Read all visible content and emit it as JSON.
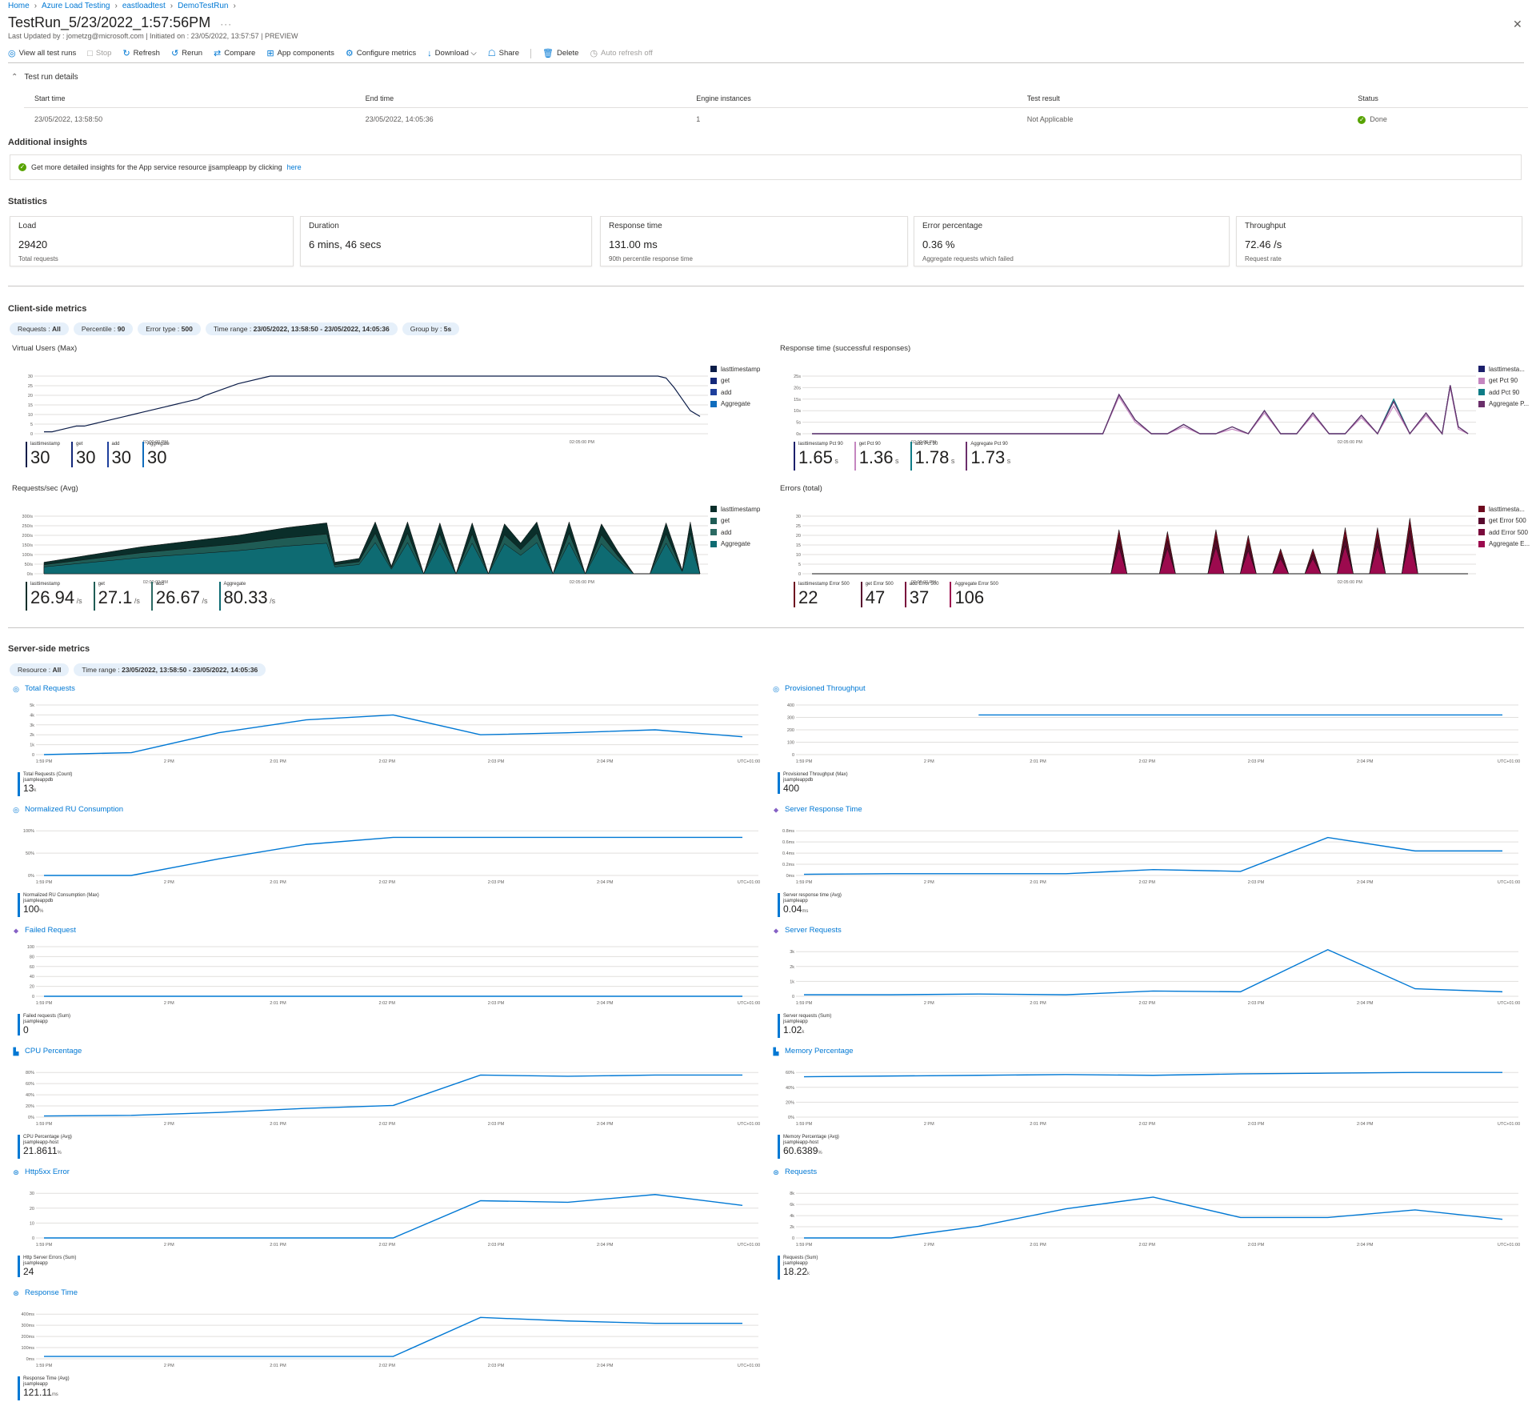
{
  "breadcrumb": [
    "Home",
    "Azure Load Testing",
    "eastloadtest",
    "DemoTestRun"
  ],
  "title": "TestRun_5/23/2022_1:57:56PM",
  "title_more": "···",
  "subtitle": "Last Updated by : jometzg@microsoft.com | Initiated on : 23/05/2022, 13:57:57 | PREVIEW",
  "toolbar": [
    {
      "icon": "eye-icon",
      "glyph": "◎",
      "label": "View all test runs",
      "enabled": true
    },
    {
      "icon": "stop-icon",
      "glyph": "□",
      "label": "Stop",
      "enabled": false
    },
    {
      "icon": "refresh-icon",
      "glyph": "↻",
      "label": "Refresh",
      "enabled": true
    },
    {
      "icon": "rerun-icon",
      "glyph": "↺",
      "label": "Rerun",
      "enabled": true
    },
    {
      "icon": "compare-icon",
      "glyph": "⇄",
      "label": "Compare",
      "enabled": true
    },
    {
      "icon": "app-components-icon",
      "glyph": "⊞",
      "label": "App components",
      "enabled": true
    },
    {
      "icon": "gear-icon",
      "glyph": "⚙",
      "label": "Configure metrics",
      "enabled": true
    },
    {
      "icon": "download-icon",
      "glyph": "↓",
      "label": "Download ⌵",
      "enabled": true
    },
    {
      "icon": "share-icon",
      "glyph": "☖",
      "label": "Share",
      "enabled": true
    },
    {
      "icon": "delete-icon",
      "glyph": "🗑",
      "label": "Delete",
      "enabled": true
    },
    {
      "icon": "clock-icon",
      "glyph": "◷",
      "label": "Auto refresh off",
      "enabled": false
    }
  ],
  "details": {
    "toggle_label": "Test run details",
    "headers": [
      "Start time",
      "End time",
      "Engine instances",
      "Test result",
      "Status"
    ],
    "values": [
      "23/05/2022, 13:58:50",
      "23/05/2022, 14:05:36",
      "1",
      "Not Applicable",
      "Done"
    ]
  },
  "insights": {
    "heading": "Additional insights",
    "text": "Get more detailed insights for the App service resource jjsampleapp by clicking",
    "link": "here"
  },
  "statistics": {
    "heading": "Statistics",
    "cards": [
      {
        "label": "Load",
        "value": "29420",
        "sub": "Total requests"
      },
      {
        "label": "Duration",
        "value": "6 mins, 46 secs",
        "sub": ""
      },
      {
        "label": "Response time",
        "value": "131.00 ms",
        "sub": "90th percentile response time"
      },
      {
        "label": "Error percentage",
        "value": "0.36 %",
        "sub": "Aggregate requests which failed"
      },
      {
        "label": "Throughput",
        "value": "72.46 /s",
        "sub": "Request rate"
      }
    ]
  },
  "client": {
    "heading": "Client-side metrics",
    "filters": [
      {
        "k": "Requests :",
        "v": "All"
      },
      {
        "k": "Percentile :",
        "v": "90"
      },
      {
        "k": "Error type :",
        "v": "500"
      },
      {
        "k": "Time range :",
        "v": "23/05/2022, 13:58:50 - 23/05/2022, 14:05:36"
      },
      {
        "k": "Group by :",
        "v": "5s"
      }
    ]
  },
  "server": {
    "heading": "Server-side metrics",
    "filters": [
      {
        "k": "Resource :",
        "v": "All"
      },
      {
        "k": "Time range :",
        "v": "23/05/2022, 13:58:50 - 23/05/2022, 14:05:36"
      }
    ],
    "x_ticks": [
      "1:59 PM",
      "2 PM",
      "2:01 PM",
      "2:02 PM",
      "2:03 PM",
      "2:04 PM",
      "UTC+01:00"
    ]
  },
  "colors": {
    "accent": "#0078d4",
    "vu": [
      "#0b1c48",
      "#14287a",
      "#1e3f9c",
      "#0f6cbd"
    ],
    "rt": [
      "#1b1f6b",
      "#c586c0",
      "#0e7c86",
      "#6b2f6b"
    ],
    "rps": [
      "#0a2e2a",
      "#1f5c55",
      "#2b6a63",
      "#0e6b72"
    ],
    "err": [
      "#6e0a1e",
      "#580a2e",
      "#7a0a3c",
      "#9c0a4e"
    ]
  },
  "chart_data": [
    {
      "type": "line",
      "title": "Virtual Users (Max)",
      "x_ticks": [
        "02:00:00 PM",
        "02:05:00 PM"
      ],
      "y_ticks": [
        "0",
        "5",
        "10",
        "15",
        "20",
        "25",
        "30"
      ],
      "ylim": [
        0,
        30
      ],
      "legend": [
        "lasttimestamp",
        "get",
        "add",
        "Aggregate"
      ],
      "x": [
        0,
        5,
        10,
        15,
        20,
        25,
        30,
        35,
        40,
        45,
        50,
        55,
        60,
        65,
        70,
        75,
        80,
        85,
        90,
        95,
        100,
        110,
        120,
        140,
        160,
        180,
        200,
        220,
        240,
        260,
        280,
        300,
        320,
        340,
        360,
        380,
        385,
        390,
        395,
        400,
        406
      ],
      "series": [
        {
          "name": "Aggregate",
          "values": [
            1,
            1,
            2,
            3,
            4,
            4,
            5,
            6,
            7,
            8,
            9,
            10,
            11,
            12,
            13,
            14,
            15,
            16,
            17,
            18,
            20,
            23,
            26,
            30,
            30,
            30,
            30,
            30,
            30,
            30,
            30,
            30,
            30,
            30,
            30,
            30,
            29,
            24,
            18,
            12,
            9
          ]
        }
      ],
      "summary": [
        {
          "name": "lasttimestamp",
          "value": "30",
          "unit": ""
        },
        {
          "name": "get",
          "value": "30",
          "unit": ""
        },
        {
          "name": "add",
          "value": "30",
          "unit": ""
        },
        {
          "name": "Aggregate",
          "value": "30",
          "unit": ""
        }
      ]
    },
    {
      "type": "line",
      "title": "Response time (successful responses)",
      "x_ticks": [
        "02:00:00 PM",
        "02:05:00 PM"
      ],
      "y_ticks": [
        "0s",
        "5s",
        "10s",
        "15s",
        "20s",
        "25s"
      ],
      "ylim": [
        0,
        25
      ],
      "legend": [
        "lasttimesta...",
        "get Pct 90",
        "add Pct 90",
        "Aggregate P..."
      ],
      "x": [
        0,
        180,
        190,
        200,
        210,
        220,
        230,
        240,
        250,
        260,
        270,
        280,
        290,
        300,
        310,
        320,
        330,
        340,
        350,
        360,
        370,
        380,
        390,
        395,
        400,
        406
      ],
      "series": [
        {
          "name": "lasttimestamp Pct 90",
          "values": [
            0,
            0,
            17,
            6,
            0,
            0,
            4,
            0,
            0,
            3,
            0,
            10,
            0,
            0,
            9,
            0,
            0,
            8,
            0,
            14,
            0,
            9,
            0,
            21,
            3,
            0
          ]
        },
        {
          "name": "get Pct 90",
          "values": [
            0,
            0,
            16,
            5,
            0,
            0,
            3,
            0,
            0,
            2,
            0,
            9,
            0,
            0,
            8,
            0,
            0,
            7,
            0,
            12,
            0,
            8,
            0,
            20,
            2,
            0
          ]
        },
        {
          "name": "add Pct 90",
          "values": [
            0,
            0,
            17,
            6,
            0,
            0,
            4,
            0,
            0,
            3,
            0,
            10,
            0,
            0,
            9,
            0,
            0,
            8,
            0,
            15,
            0,
            9,
            0,
            21,
            3,
            0
          ]
        },
        {
          "name": "Aggregate Pct 90",
          "values": [
            0,
            0,
            17,
            6,
            0,
            0,
            4,
            0,
            0,
            3,
            0,
            10,
            0,
            0,
            9,
            0,
            0,
            8,
            0,
            14,
            0,
            9,
            0,
            21,
            3,
            0
          ]
        }
      ],
      "summary": [
        {
          "name": "lasttimestamp Pct 90",
          "value": "1.65",
          "unit": "s"
        },
        {
          "name": "get Pct 90",
          "value": "1.36",
          "unit": "s"
        },
        {
          "name": "add Pct 90",
          "value": "1.78",
          "unit": "s"
        },
        {
          "name": "Aggregate Pct 90",
          "value": "1.73",
          "unit": "s"
        }
      ]
    },
    {
      "type": "area",
      "title": "Requests/sec (Avg)",
      "x_ticks": [
        "02:00:00 PM",
        "02:05:00 PM"
      ],
      "y_ticks": [
        "0/s",
        "50/s",
        "100/s",
        "150/s",
        "200/s",
        "250/s",
        "300/s"
      ],
      "ylim": [
        0,
        300
      ],
      "legend": [
        "lasttimestamp",
        "get",
        "add",
        "Aggregate"
      ],
      "x": [
        0,
        30,
        60,
        90,
        120,
        150,
        175,
        180,
        195,
        205,
        215,
        225,
        235,
        245,
        255,
        265,
        275,
        285,
        295,
        305,
        315,
        325,
        335,
        345,
        355,
        365,
        375,
        385,
        395,
        400,
        406
      ],
      "series": [
        {
          "name": "Aggregate",
          "values": [
            60,
            100,
            140,
            170,
            200,
            240,
            265,
            60,
            80,
            270,
            40,
            270,
            0,
            265,
            0,
            265,
            0,
            260,
            160,
            270,
            0,
            270,
            0,
            260,
            120,
            0,
            0,
            265,
            20,
            270,
            0
          ]
        }
      ],
      "summary": [
        {
          "name": "lasttimestamp",
          "value": "26.94",
          "unit": "/s"
        },
        {
          "name": "get",
          "value": "27.1",
          "unit": "/s"
        },
        {
          "name": "add",
          "value": "26.67",
          "unit": "/s"
        },
        {
          "name": "Aggregate",
          "value": "80.33",
          "unit": "/s"
        }
      ]
    },
    {
      "type": "area",
      "title": "Errors (total)",
      "x_ticks": [
        "02:00:00 PM",
        "02:05:00 PM"
      ],
      "y_ticks": [
        "0",
        "5",
        "10",
        "15",
        "20",
        "25",
        "30"
      ],
      "ylim": [
        0,
        30
      ],
      "legend": [
        "lasttimesta...",
        "get Error 500",
        "add Error 500",
        "Aggregate E..."
      ],
      "x": [
        0,
        185,
        190,
        195,
        215,
        220,
        225,
        245,
        250,
        255,
        265,
        270,
        275,
        285,
        290,
        295,
        305,
        310,
        315,
        325,
        330,
        335,
        345,
        350,
        355,
        365,
        370,
        375,
        385,
        390,
        395,
        406
      ],
      "series": [
        {
          "name": "Aggregate",
          "values": [
            0,
            0,
            23,
            0,
            0,
            22,
            0,
            0,
            23,
            0,
            0,
            20,
            0,
            0,
            13,
            0,
            0,
            13,
            0,
            0,
            24,
            0,
            0,
            24,
            0,
            0,
            29,
            0,
            0,
            0,
            0,
            0
          ]
        }
      ],
      "summary": [
        {
          "name": "lasttimestamp Error 500",
          "value": "22",
          "unit": ""
        },
        {
          "name": "get Error 500",
          "value": "47",
          "unit": ""
        },
        {
          "name": "add Error 500",
          "value": "37",
          "unit": ""
        },
        {
          "name": "Aggregate Error 500",
          "value": "106",
          "unit": ""
        }
      ]
    },
    {
      "type": "line",
      "title": "Total Requests",
      "icon": "cosmos-icon",
      "y_ticks": [
        "0",
        "1k",
        "2k",
        "3k",
        "4k",
        "5k"
      ],
      "ylim": [
        0,
        5000
      ],
      "x": [
        0,
        1,
        2,
        3,
        4,
        5,
        6,
        7,
        8
      ],
      "values": [
        0,
        200,
        2200,
        3500,
        4000,
        2000,
        2200,
        2500,
        1800
      ],
      "summary_name": "Total Requests (Count)",
      "summary_resource": "jsampleappdb",
      "summary_value": "13",
      "summary_unit": "k"
    },
    {
      "type": "line",
      "title": "Provisioned Throughput",
      "icon": "cosmos-icon",
      "y_ticks": [
        "0",
        "100",
        "200",
        "300",
        "400"
      ],
      "ylim": [
        0,
        500
      ],
      "x": [
        2,
        8
      ],
      "values": [
        400,
        400
      ],
      "summary_name": "Provisioned Throughput (Max)",
      "summary_resource": "jsampleappdb",
      "summary_value": "400",
      "summary_unit": ""
    },
    {
      "type": "line",
      "title": "Normalized RU Consumption",
      "icon": "cosmos-icon",
      "y_ticks": [
        "0%",
        "50%",
        "100%"
      ],
      "ylim": [
        0,
        120
      ],
      "x": [
        0,
        1,
        2,
        3,
        4,
        5,
        6,
        7,
        8
      ],
      "values": [
        0,
        0,
        40,
        75,
        92,
        92,
        92,
        92,
        92
      ],
      "summary_name": "Normalized RU Consumption (Max)",
      "summary_resource": "jsampleappdb",
      "summary_value": "100",
      "summary_unit": "%"
    },
    {
      "type": "line",
      "title": "Server Response Time",
      "icon": "location-icon",
      "y_ticks": [
        "0ms",
        "0.2ms",
        "0.4ms",
        "0.6ms",
        "0.8ms"
      ],
      "ylim": [
        0,
        0.85
      ],
      "x": [
        0,
        1,
        2,
        3,
        4,
        5,
        6,
        7,
        8
      ],
      "values": [
        0.02,
        0.03,
        0.03,
        0.03,
        0.1,
        0.07,
        0.65,
        0.42,
        0.42
      ],
      "summary_name": "Server response time (Avg)",
      "summary_resource": "jsampleapp",
      "summary_value": "0.04",
      "summary_unit": "ms"
    },
    {
      "type": "line",
      "title": "Failed Request",
      "icon": "location-icon",
      "y_ticks": [
        "0",
        "20",
        "40",
        "60",
        "80",
        "100"
      ],
      "ylim": [
        0,
        100
      ],
      "x": [
        0,
        8
      ],
      "values": [
        0,
        0
      ],
      "summary_name": "Failed requests (Sum)",
      "summary_resource": "jsampleapp",
      "summary_value": "0",
      "summary_unit": ""
    },
    {
      "type": "line",
      "title": "Server Requests",
      "icon": "location-icon",
      "y_ticks": [
        "0",
        "1k",
        "2k",
        "3k"
      ],
      "ylim": [
        0,
        3300
      ],
      "x": [
        0,
        1,
        2,
        3,
        4,
        5,
        6,
        7,
        8
      ],
      "values": [
        100,
        100,
        150,
        100,
        350,
        300,
        3100,
        500,
        300
      ],
      "summary_name": "Server requests (Sum)",
      "summary_resource": "jsampleapp",
      "summary_value": "1.02",
      "summary_unit": "k"
    },
    {
      "type": "line",
      "title": "CPU Percentage",
      "icon": "server-icon",
      "y_ticks": [
        "0%",
        "20%",
        "40%",
        "60%",
        "80%"
      ],
      "ylim": [
        0,
        85
      ],
      "x": [
        0,
        1,
        2,
        3,
        4,
        5,
        6,
        7,
        8
      ],
      "values": [
        2,
        3,
        8,
        15,
        20,
        72,
        70,
        72,
        72
      ],
      "summary_name": "CPU Percentage (Avg)",
      "summary_resource": "jsampleapp-host",
      "summary_value": "21.8611",
      "summary_unit": "%"
    },
    {
      "type": "line",
      "title": "Memory Percentage",
      "icon": "server-icon",
      "y_ticks": [
        "0%",
        "20%",
        "40%",
        "60%"
      ],
      "ylim": [
        0,
        70
      ],
      "x": [
        0,
        1,
        2,
        3,
        4,
        5,
        6,
        7,
        8
      ],
      "values": [
        57,
        58,
        59,
        60,
        59,
        61,
        62,
        63,
        63
      ],
      "summary_name": "Memory Percentage (Avg)",
      "summary_resource": "jsampleapp-host",
      "summary_value": "60.6389",
      "summary_unit": "%"
    },
    {
      "type": "line",
      "title": "Http5xx Error",
      "icon": "globe-icon",
      "y_ticks": [
        "0",
        "10",
        "20",
        "30"
      ],
      "ylim": [
        0,
        32
      ],
      "x": [
        0,
        1,
        2,
        3,
        4,
        5,
        6,
        7,
        8
      ],
      "values": [
        0,
        0,
        0,
        0,
        0,
        24,
        23,
        28,
        21
      ],
      "summary_name": "Http Server Errors (Sum)",
      "summary_resource": "jsampleapp",
      "summary_value": "24",
      "summary_unit": ""
    },
    {
      "type": "line",
      "title": "Requests",
      "icon": "globe-icon",
      "y_ticks": [
        "0",
        "2k",
        "4k",
        "6k",
        "8k"
      ],
      "ylim": [
        0,
        8500
      ],
      "x": [
        0,
        1,
        2,
        3,
        4,
        5,
        6,
        7,
        8
      ],
      "values": [
        0,
        0,
        2000,
        5000,
        7000,
        3500,
        3500,
        4800,
        3200
      ],
      "summary_name": "Requests (Sum)",
      "summary_resource": "jsampleapp",
      "summary_value": "18.22",
      "summary_unit": "k"
    },
    {
      "type": "line",
      "title": "Response Time",
      "icon": "globe-icon",
      "y_ticks": [
        "0ms",
        "100ms",
        "200ms",
        "300ms",
        "400ms"
      ],
      "ylim": [
        0,
        420
      ],
      "x": [
        0,
        1,
        2,
        3,
        4,
        5,
        6,
        7,
        8
      ],
      "values": [
        20,
        20,
        20,
        20,
        20,
        350,
        320,
        300,
        300
      ],
      "summary_name": "Response Time (Avg)",
      "summary_resource": "jsampleapp",
      "summary_value": "121.11",
      "summary_unit": "ms"
    }
  ]
}
